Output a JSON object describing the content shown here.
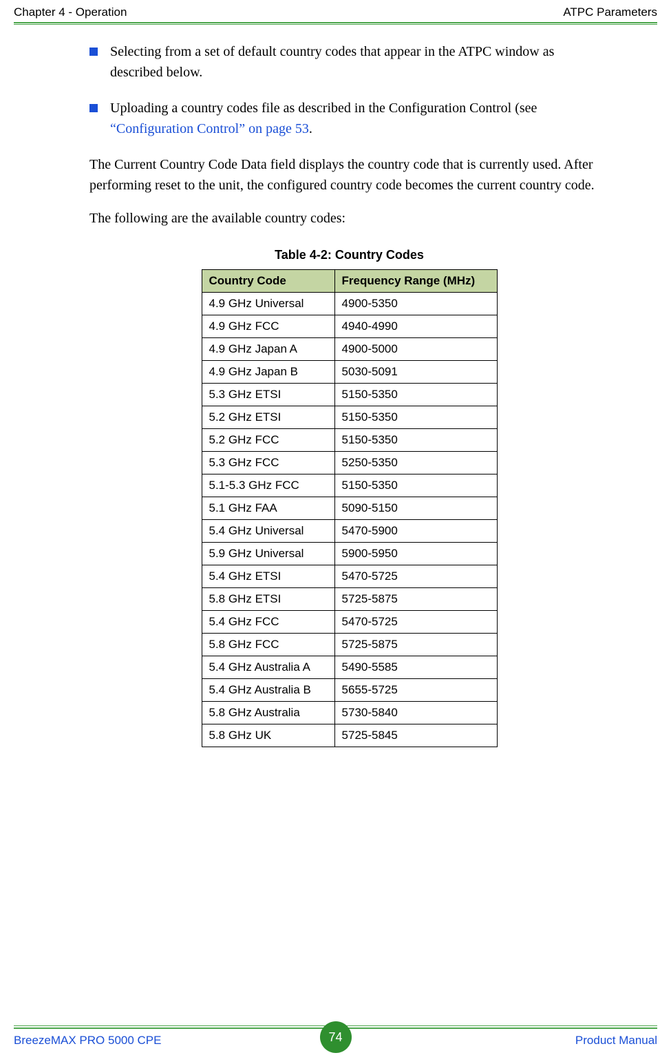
{
  "header": {
    "left": "Chapter 4 - Operation",
    "right": "ATPC Parameters"
  },
  "bullets": [
    {
      "text_pre": "Selecting from a set of default country codes that appear in the ATPC window as described below.",
      "link": "",
      "text_post": ""
    },
    {
      "text_pre": "Uploading a country codes file as described in the Configuration Control (see ",
      "link": "“Configuration Control” on page 53",
      "text_post": "."
    }
  ],
  "para1": "The Current Country Code Data field displays the country code that is currently used. After performing reset to the unit, the configured country code becomes the current country code.",
  "para2": "The following are the available country codes:",
  "table": {
    "title": "Table 4-2: Country Codes",
    "columns": [
      "Country Code",
      "Frequency Range (MHz)"
    ],
    "rows": [
      [
        "4.9 GHz Universal",
        "4900-5350"
      ],
      [
        "4.9 GHz FCC",
        "4940-4990"
      ],
      [
        "4.9 GHz Japan A",
        "4900-5000"
      ],
      [
        "4.9 GHz Japan B",
        "5030-5091"
      ],
      [
        "5.3 GHz ETSI",
        "5150-5350"
      ],
      [
        "5.2 GHz ETSI",
        "5150-5350"
      ],
      [
        "5.2 GHz FCC",
        "5150-5350"
      ],
      [
        "5.3 GHz FCC",
        "5250-5350"
      ],
      [
        "5.1-5.3 GHz FCC",
        "5150-5350"
      ],
      [
        "5.1 GHz FAA",
        "5090-5150"
      ],
      [
        "5.4 GHz Universal",
        "5470-5900"
      ],
      [
        "5.9 GHz Universal",
        "5900-5950"
      ],
      [
        "5.4 GHz ETSI",
        "5470-5725"
      ],
      [
        "5.8 GHz ETSI",
        "5725-5875"
      ],
      [
        "5.4 GHz FCC",
        "5470-5725"
      ],
      [
        "5.8 GHz FCC",
        "5725-5875"
      ],
      [
        "5.4 GHz Australia A",
        "5490-5585"
      ],
      [
        "5.4 GHz Australia B",
        "5655-5725"
      ],
      [
        "5.8 GHz Australia",
        "5730-5840"
      ],
      [
        "5.8 GHz UK",
        "5725-5845"
      ]
    ]
  },
  "footer": {
    "left": "BreezeMAX PRO 5000 CPE",
    "page": "74",
    "right": "Product Manual"
  },
  "colors": {
    "rule": "#4ca64c",
    "link": "#1a4fd6",
    "bullet": "#1a4fd6",
    "th_bg": "#c4d5a3",
    "badge_bg": "#2f8f2f"
  }
}
